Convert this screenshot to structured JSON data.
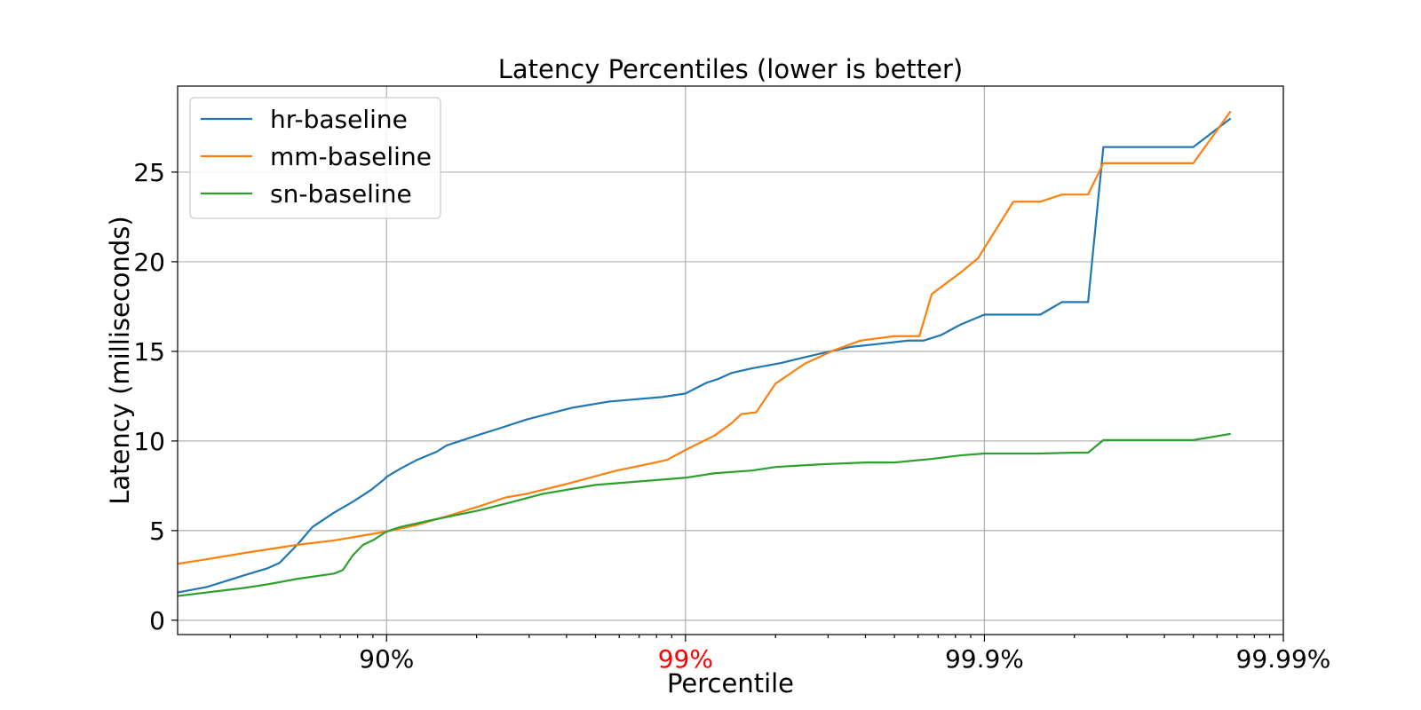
{
  "chart_data": {
    "type": "line",
    "title": "Latency Percentiles (lower is better)",
    "xlabel": "Percentile",
    "ylabel": "Latency (milliseconds)",
    "x_scale": "log of 1/(1-percentile)",
    "xlim": [
      0.5,
      0.9999
    ],
    "ylim": [
      -0.8,
      29.8
    ],
    "grid": true,
    "legend_position": "upper left",
    "xticks": [
      {
        "value": 0.9,
        "label": "90%",
        "color": "#000000"
      },
      {
        "value": 0.99,
        "label": "99%",
        "color": "#ff0000"
      },
      {
        "value": 0.999,
        "label": "99.9%",
        "color": "#000000"
      },
      {
        "value": 0.9999,
        "label": "99.99%",
        "color": "#000000"
      }
    ],
    "yticks": [
      0,
      5,
      10,
      15,
      20,
      25
    ],
    "series": [
      {
        "name": "hr-baseline",
        "color": "#1f77b4",
        "points": [
          [
            0.5,
            1.55
          ],
          [
            0.6,
            1.85
          ],
          [
            0.7,
            2.5
          ],
          [
            0.75,
            2.9
          ],
          [
            0.772,
            3.2
          ],
          [
            0.802,
            4.25
          ],
          [
            0.823,
            5.2
          ],
          [
            0.85,
            6.0
          ],
          [
            0.87,
            6.6
          ],
          [
            0.888,
            7.3
          ],
          [
            0.898,
            7.85
          ],
          [
            0.9,
            8.0
          ],
          [
            0.91,
            8.45
          ],
          [
            0.921,
            8.95
          ],
          [
            0.932,
            9.4
          ],
          [
            0.937,
            9.75
          ],
          [
            0.951,
            10.35
          ],
          [
            0.958,
            10.7
          ],
          [
            0.966,
            11.2
          ],
          [
            0.976,
            11.85
          ],
          [
            0.982,
            12.2
          ],
          [
            0.988,
            12.45
          ],
          [
            0.99,
            12.65
          ],
          [
            0.9915,
            13.25
          ],
          [
            0.9922,
            13.45
          ],
          [
            0.993,
            13.8
          ],
          [
            0.994,
            14.05
          ],
          [
            0.9952,
            14.35
          ],
          [
            0.9963,
            14.8
          ],
          [
            0.9972,
            15.25
          ],
          [
            0.9977,
            15.4
          ],
          [
            0.9982,
            15.6
          ],
          [
            0.9984,
            15.6
          ],
          [
            0.9986,
            15.9
          ],
          [
            0.9988,
            16.5
          ],
          [
            0.999,
            17.05
          ],
          [
            0.99935,
            17.05
          ],
          [
            0.99945,
            17.75
          ],
          [
            0.99955,
            17.75
          ],
          [
            0.9996,
            26.4
          ],
          [
            0.9998,
            26.4
          ],
          [
            0.99985,
            28.0
          ]
        ]
      },
      {
        "name": "mm-baseline",
        "color": "#ff7f0e",
        "points": [
          [
            0.5,
            3.15
          ],
          [
            0.6,
            3.4
          ],
          [
            0.7,
            3.75
          ],
          [
            0.8,
            4.2
          ],
          [
            0.85,
            4.45
          ],
          [
            0.9,
            4.95
          ],
          [
            0.92,
            5.3
          ],
          [
            0.94,
            5.9
          ],
          [
            0.952,
            6.4
          ],
          [
            0.96,
            6.85
          ],
          [
            0.966,
            7.05
          ],
          [
            0.975,
            7.6
          ],
          [
            0.983,
            8.35
          ],
          [
            0.987,
            8.75
          ],
          [
            0.9885,
            8.95
          ],
          [
            0.99,
            9.5
          ],
          [
            0.992,
            10.3
          ],
          [
            0.993,
            11.0
          ],
          [
            0.9935,
            11.5
          ],
          [
            0.9942,
            11.6
          ],
          [
            0.995,
            13.2
          ],
          [
            0.996,
            14.3
          ],
          [
            0.9968,
            15.05
          ],
          [
            0.9974,
            15.6
          ],
          [
            0.998,
            15.85
          ],
          [
            0.99835,
            15.85
          ],
          [
            0.9985,
            18.2
          ],
          [
            0.9988,
            19.4
          ],
          [
            0.99895,
            20.2
          ],
          [
            0.9992,
            23.35
          ],
          [
            0.99935,
            23.35
          ],
          [
            0.99945,
            23.75
          ],
          [
            0.9995,
            23.75
          ],
          [
            0.99955,
            23.75
          ],
          [
            0.9996,
            25.5
          ],
          [
            0.9998,
            25.5
          ],
          [
            0.99985,
            28.4
          ]
        ]
      },
      {
        "name": "sn-baseline",
        "color": "#2ca02c",
        "points": [
          [
            0.5,
            1.35
          ],
          [
            0.6,
            1.55
          ],
          [
            0.7,
            1.8
          ],
          [
            0.75,
            2.0
          ],
          [
            0.8,
            2.3
          ],
          [
            0.85,
            2.6
          ],
          [
            0.86,
            2.8
          ],
          [
            0.87,
            3.6
          ],
          [
            0.88,
            4.2
          ],
          [
            0.89,
            4.5
          ],
          [
            0.9,
            4.95
          ],
          [
            0.91,
            5.2
          ],
          [
            0.93,
            5.6
          ],
          [
            0.95,
            6.1
          ],
          [
            0.96,
            6.5
          ],
          [
            0.97,
            7.05
          ],
          [
            0.98,
            7.55
          ],
          [
            0.99,
            7.95
          ],
          [
            0.992,
            8.2
          ],
          [
            0.994,
            8.35
          ],
          [
            0.995,
            8.55
          ],
          [
            0.9965,
            8.7
          ],
          [
            0.9975,
            8.8
          ],
          [
            0.998,
            8.8
          ],
          [
            0.9985,
            9.0
          ],
          [
            0.9988,
            9.2
          ],
          [
            0.999,
            9.3
          ],
          [
            0.99935,
            9.3
          ],
          [
            0.9995,
            9.35
          ],
          [
            0.99955,
            9.35
          ],
          [
            0.9996,
            10.05
          ],
          [
            0.9998,
            10.05
          ],
          [
            0.99985,
            10.4
          ]
        ]
      }
    ]
  }
}
